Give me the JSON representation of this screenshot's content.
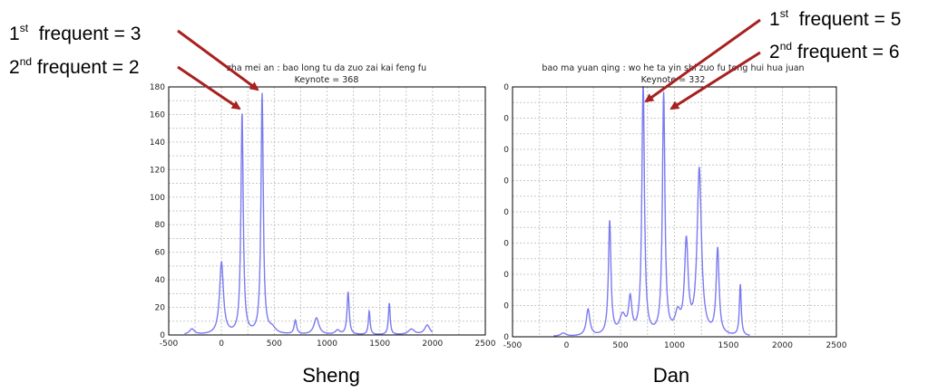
{
  "annotations": {
    "left_first": {
      "prefix": "1",
      "sup": "st",
      "text": "  frequent = 3"
    },
    "left_second": {
      "prefix": "2",
      "sup": "nd",
      "text": " frequent = 2"
    },
    "right_first": {
      "prefix": "1",
      "sup": "st",
      "text": "  frequent = 5"
    },
    "right_second": {
      "prefix": "2",
      "sup": "nd",
      "text": " frequent = 6"
    }
  },
  "colors": {
    "line": "#7b7bf0",
    "arrow": "#a82020",
    "grid": "#c8c8c8",
    "frame": "#000000"
  },
  "chart_data": [
    {
      "type": "line",
      "title": "zha mei an : bao long tu da zuo zai kai feng fu",
      "subtitle": "Keynote = 368",
      "caption": "Sheng",
      "xlim": [
        -500,
        2500
      ],
      "ylim": [
        0,
        180
      ],
      "xticks": [
        "-500",
        "0",
        "500",
        "1000",
        "1500",
        "2000",
        "2500"
      ],
      "yticks": [
        "0",
        "20",
        "40",
        "60",
        "80",
        "100",
        "120",
        "140",
        "160",
        "180"
      ],
      "grid": true,
      "peaks": [
        {
          "x": -280,
          "y": 4,
          "w": 28
        },
        {
          "x": 0,
          "y": 52,
          "w": 22
        },
        {
          "x": 195,
          "y": 160,
          "w": 13
        },
        {
          "x": 385,
          "y": 174,
          "w": 13
        },
        {
          "x": 480,
          "y": 4,
          "w": 40
        },
        {
          "x": 700,
          "y": 10,
          "w": 14
        },
        {
          "x": 900,
          "y": 12,
          "w": 28
        },
        {
          "x": 1100,
          "y": 3,
          "w": 25
        },
        {
          "x": 1200,
          "y": 31,
          "w": 12
        },
        {
          "x": 1400,
          "y": 17,
          "w": 10
        },
        {
          "x": 1590,
          "y": 23,
          "w": 10
        },
        {
          "x": 1800,
          "y": 4,
          "w": 35
        },
        {
          "x": 1950,
          "y": 7,
          "w": 30
        }
      ],
      "x_range": [
        -350,
        2000
      ]
    },
    {
      "type": "line",
      "title": "bao ma yuan qing : wo he ta yin shi zuo fu tong hui hua juan",
      "subtitle": "Keynote = 332",
      "caption": "Dan",
      "xlim": [
        -500,
        2500
      ],
      "ylim": [
        0,
        160
      ],
      "xticks": [
        "-500",
        "0",
        "500",
        "1000",
        "1500",
        "2000",
        "2500"
      ],
      "yticks": [
        "0",
        "0",
        "0",
        "0",
        "0",
        "0",
        "0",
        "0",
        "0"
      ],
      "grid": true,
      "peaks": [
        {
          "x": -30,
          "y": 2,
          "w": 30
        },
        {
          "x": 200,
          "y": 17,
          "w": 20
        },
        {
          "x": 400,
          "y": 73,
          "w": 14
        },
        {
          "x": 520,
          "y": 12,
          "w": 35
        },
        {
          "x": 590,
          "y": 22,
          "w": 18
        },
        {
          "x": 710,
          "y": 163,
          "w": 14
        },
        {
          "x": 900,
          "y": 154,
          "w": 14
        },
        {
          "x": 1030,
          "y": 12,
          "w": 30
        },
        {
          "x": 1110,
          "y": 58,
          "w": 20
        },
        {
          "x": 1230,
          "y": 106,
          "w": 24
        },
        {
          "x": 1400,
          "y": 55,
          "w": 16
        },
        {
          "x": 1610,
          "y": 33,
          "w": 10
        },
        {
          "x": 2120,
          "y": 2,
          "w": 12
        }
      ],
      "x_range": [
        -120,
        1700
      ]
    }
  ]
}
